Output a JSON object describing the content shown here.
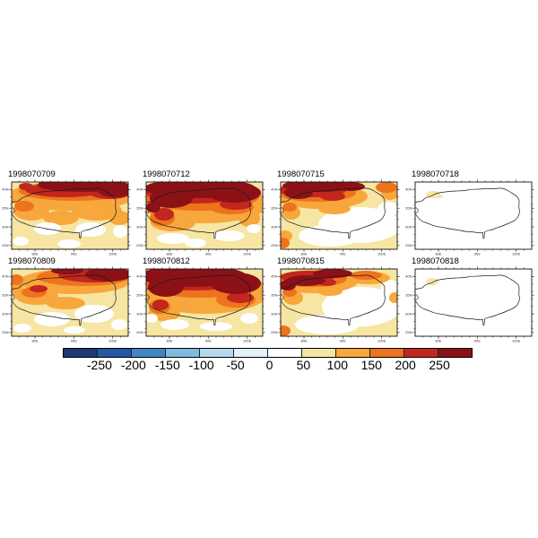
{
  "figure": {
    "panels": [
      {
        "title": "1998070709",
        "pattern": "p0709"
      },
      {
        "title": "1998070712",
        "pattern": "p0712"
      },
      {
        "title": "1998070715",
        "pattern": "p0715"
      },
      {
        "title": "1998070718",
        "pattern": "p0718"
      },
      {
        "title": "1998070809",
        "pattern": "p0809"
      },
      {
        "title": "1998070812",
        "pattern": "p0812"
      },
      {
        "title": "1998070815",
        "pattern": "p0815"
      },
      {
        "title": "1998070818",
        "pattern": "p0818"
      }
    ],
    "x_tick_labels": [
      "80E",
      "90E",
      "100E"
    ],
    "y_tick_labels": [
      "40N",
      "35N",
      "30N",
      "25N"
    ],
    "palette": {
      "band_0_50": "#FFFFFF",
      "band_50_100": "#F6E5A3",
      "band_100_150": "#F7A73B",
      "band_150_200": "#EE731D",
      "band_200_250": "#C2261D",
      "band_gt_250": "#8B1117"
    },
    "colorbar": {
      "tick_labels": [
        "-250",
        "-200",
        "-150",
        "-100",
        "-50",
        "0",
        "50",
        "100",
        "150",
        "200",
        "250"
      ],
      "segment_colors": [
        "#1B3A76",
        "#2458A6",
        "#3F86C3",
        "#7FBBDE",
        "#B2D9EE",
        "#E1F1F9",
        "#FFFFFF",
        "#F6E5A3",
        "#F7A73B",
        "#EE731D",
        "#C2261D",
        "#8B1117"
      ]
    }
  },
  "chart_data": {
    "type": "heatmap",
    "subtype": "multi-panel filled contour maps over the Tibetan Plateau",
    "grid": {
      "rows": 2,
      "cols": 4
    },
    "panel_titles": [
      "1998070709",
      "1998070712",
      "1998070715",
      "1998070718",
      "1998070809",
      "1998070812",
      "1998070815",
      "1998070818"
    ],
    "x_axis": {
      "tick_labels": [
        "80E",
        "90E",
        "100E"
      ],
      "approx_range": [
        "74E",
        "104E"
      ]
    },
    "y_axis": {
      "tick_labels": [
        "40N",
        "35N",
        "30N",
        "25N"
      ],
      "approx_range": [
        "24N",
        "42N"
      ]
    },
    "colorbar": {
      "orientation": "horizontal",
      "levels": [
        -250,
        -200,
        -150,
        -100,
        -50,
        0,
        50,
        100,
        150,
        200,
        250
      ],
      "tick_labels": [
        "-250",
        "-200",
        "-150",
        "-100",
        "-50",
        "0",
        "50",
        "100",
        "150",
        "200",
        "250"
      ],
      "segment_colors": [
        "#1B3A76",
        "#2458A6",
        "#3F86C3",
        "#7FBBDE",
        "#B2D9EE",
        "#E1F1F9",
        "#FFFFFF",
        "#F6E5A3",
        "#F7A73B",
        "#EE731D",
        "#C2261D",
        "#8B1117"
      ]
    },
    "panel_summaries": [
      "values >250 along northern edge, 100-250 across west and center, 0-100 in south with white patches",
      "strongest panel: >250 over most of the north and northwest, 100-200 center, 0-100 south",
      ">250 band along northwest rim, 100-200 west, near 0-50 over the southeast half",
      "near 0-50 everywhere except a small 50-100 patch in the northwest",
      ">200 along northern edge, 100-200 west-center, 0-100 south with white patches",
      ">250 across the whole northern half, 100-200 center, 0-100 south",
      ">250 along northwest rim, 100-200 west, 0-100 over the southeast",
      "near 0-50 everywhere except a small 50-100 patch in the northwest"
    ],
    "overlay": "black Tibetan Plateau boundary outline in every panel"
  }
}
